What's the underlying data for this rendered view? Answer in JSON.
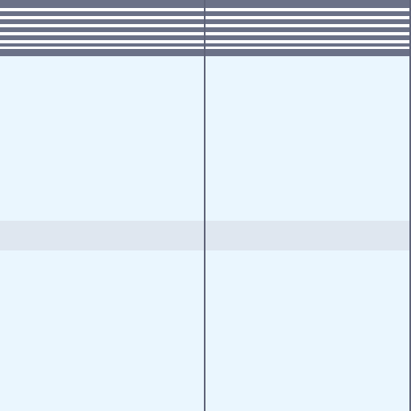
{
  "header": {
    "stripe_count": 6
  },
  "panes": {
    "left": {
      "highlighted_row": true
    },
    "right": {
      "highlighted_row": true
    }
  },
  "colors": {
    "background": "#eaf6fe",
    "header": "#6b7187",
    "stripe": "#ffffff",
    "divider": "#5e6378",
    "row_highlight": "#dfe7f0"
  }
}
